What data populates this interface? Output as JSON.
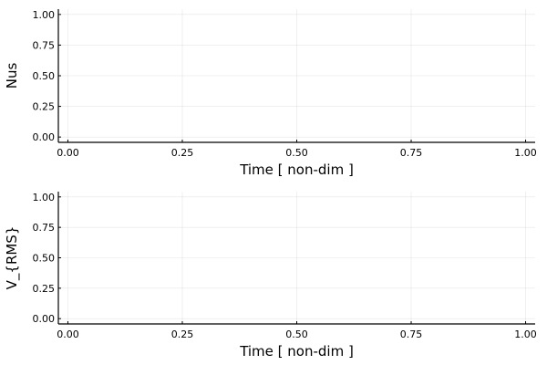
{
  "chart_data": [
    {
      "type": "line",
      "ylabel": "Nus",
      "xlabel": "Time [ non-dim ]",
      "xlim": [
        0,
        1
      ],
      "ylim": [
        0,
        1
      ],
      "xticks": [
        0.0,
        0.25,
        0.5,
        0.75,
        1.0
      ],
      "xtick_labels": [
        "0.00",
        "0.25",
        "0.50",
        "0.75",
        "1.00"
      ],
      "yticks": [
        0.0,
        0.25,
        0.5,
        0.75,
        1.0
      ],
      "ytick_labels": [
        "0.00",
        "0.25",
        "0.50",
        "0.75",
        "1.00"
      ],
      "grid": true,
      "series": []
    },
    {
      "type": "line",
      "ylabel": "V_{RMS}",
      "xlabel": "Time [ non-dim ]",
      "xlim": [
        0,
        1
      ],
      "ylim": [
        0,
        1
      ],
      "xticks": [
        0.0,
        0.25,
        0.5,
        0.75,
        1.0
      ],
      "xtick_labels": [
        "0.00",
        "0.25",
        "0.50",
        "0.75",
        "1.00"
      ],
      "yticks": [
        0.0,
        0.25,
        0.5,
        0.75,
        1.0
      ],
      "ytick_labels": [
        "0.00",
        "0.25",
        "0.50",
        "0.75",
        "1.00"
      ],
      "grid": true,
      "series": []
    }
  ]
}
